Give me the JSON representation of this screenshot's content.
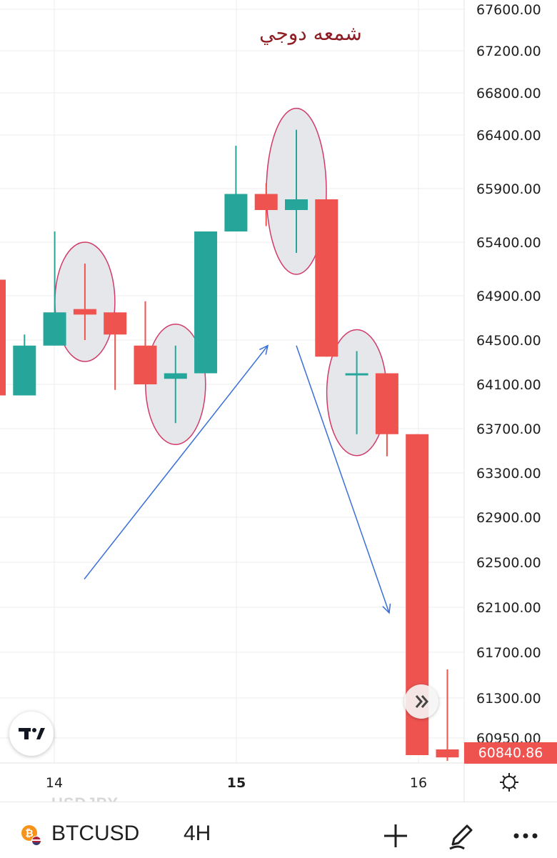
{
  "chart_data": {
    "type": "candlestick",
    "symbol": "BTCUSD",
    "interval": "4H",
    "annotation": "شمعه دوجي",
    "price_axis_labels": [
      "67600.00",
      "67200.00",
      "66800.00",
      "66400.00",
      "65900.00",
      "65400.00",
      "64900.00",
      "64500.00",
      "64100.00",
      "63700.00",
      "63300.00",
      "62900.00",
      "62500.00",
      "62100.00",
      "61700.00",
      "61300.00",
      "60950.00"
    ],
    "time_axis_labels": [
      "14",
      "15",
      "16"
    ],
    "last_price": "60840.86",
    "colors": {
      "up": "#26a69a",
      "down": "#ef5350",
      "highlight_stroke": "#d23a68",
      "arrow": "#3a6fd8",
      "annotation": "#8e1e24"
    },
    "candles": [
      {
        "open": 65050,
        "high": 65050,
        "low": 64000,
        "close": 64000
      },
      {
        "open": 64000,
        "high": 64550,
        "low": 64000,
        "close": 64450
      },
      {
        "open": 64450,
        "high": 65500,
        "low": 64450,
        "close": 64750
      },
      {
        "open": 64780,
        "high": 65200,
        "low": 64500,
        "close": 64730
      },
      {
        "open": 64750,
        "high": 64750,
        "low": 64050,
        "close": 64550
      },
      {
        "open": 64450,
        "high": 64850,
        "low": 64100,
        "close": 64100
      },
      {
        "open": 64150,
        "high": 64450,
        "low": 63750,
        "close": 64200
      },
      {
        "open": 64200,
        "high": 65500,
        "low": 64200,
        "close": 65500
      },
      {
        "open": 65500,
        "high": 66300,
        "low": 65500,
        "close": 65850
      },
      {
        "open": 65850,
        "high": 65950,
        "low": 65550,
        "close": 65700
      },
      {
        "open": 65700,
        "high": 66450,
        "low": 65300,
        "close": 65800
      },
      {
        "open": 65800,
        "high": 65800,
        "low": 64350,
        "close": 64350
      },
      {
        "open": 64200,
        "high": 64400,
        "low": 63650,
        "close": 64200
      },
      {
        "open": 64200,
        "high": 64200,
        "low": 63450,
        "close": 63650
      },
      {
        "open": 63650,
        "high": 63650,
        "low": 60800,
        "close": 60800
      },
      {
        "open": 60850,
        "high": 61550,
        "low": 60750,
        "close": 60780
      }
    ],
    "highlighted_candles": [
      3,
      6,
      10,
      12
    ],
    "arrows": [
      {
        "direction": "up",
        "from_price": 62350,
        "to_price": 64450
      },
      {
        "direction": "down",
        "from_price": 64450,
        "to_price": 62050
      }
    ]
  },
  "bottom_bar": {
    "ghost_symbol": "USDJPY",
    "symbol": "BTCUSD",
    "interval": "4H",
    "icons": [
      "bitcoin-icon",
      "plus-icon",
      "pen-icon",
      "more-icon"
    ]
  }
}
